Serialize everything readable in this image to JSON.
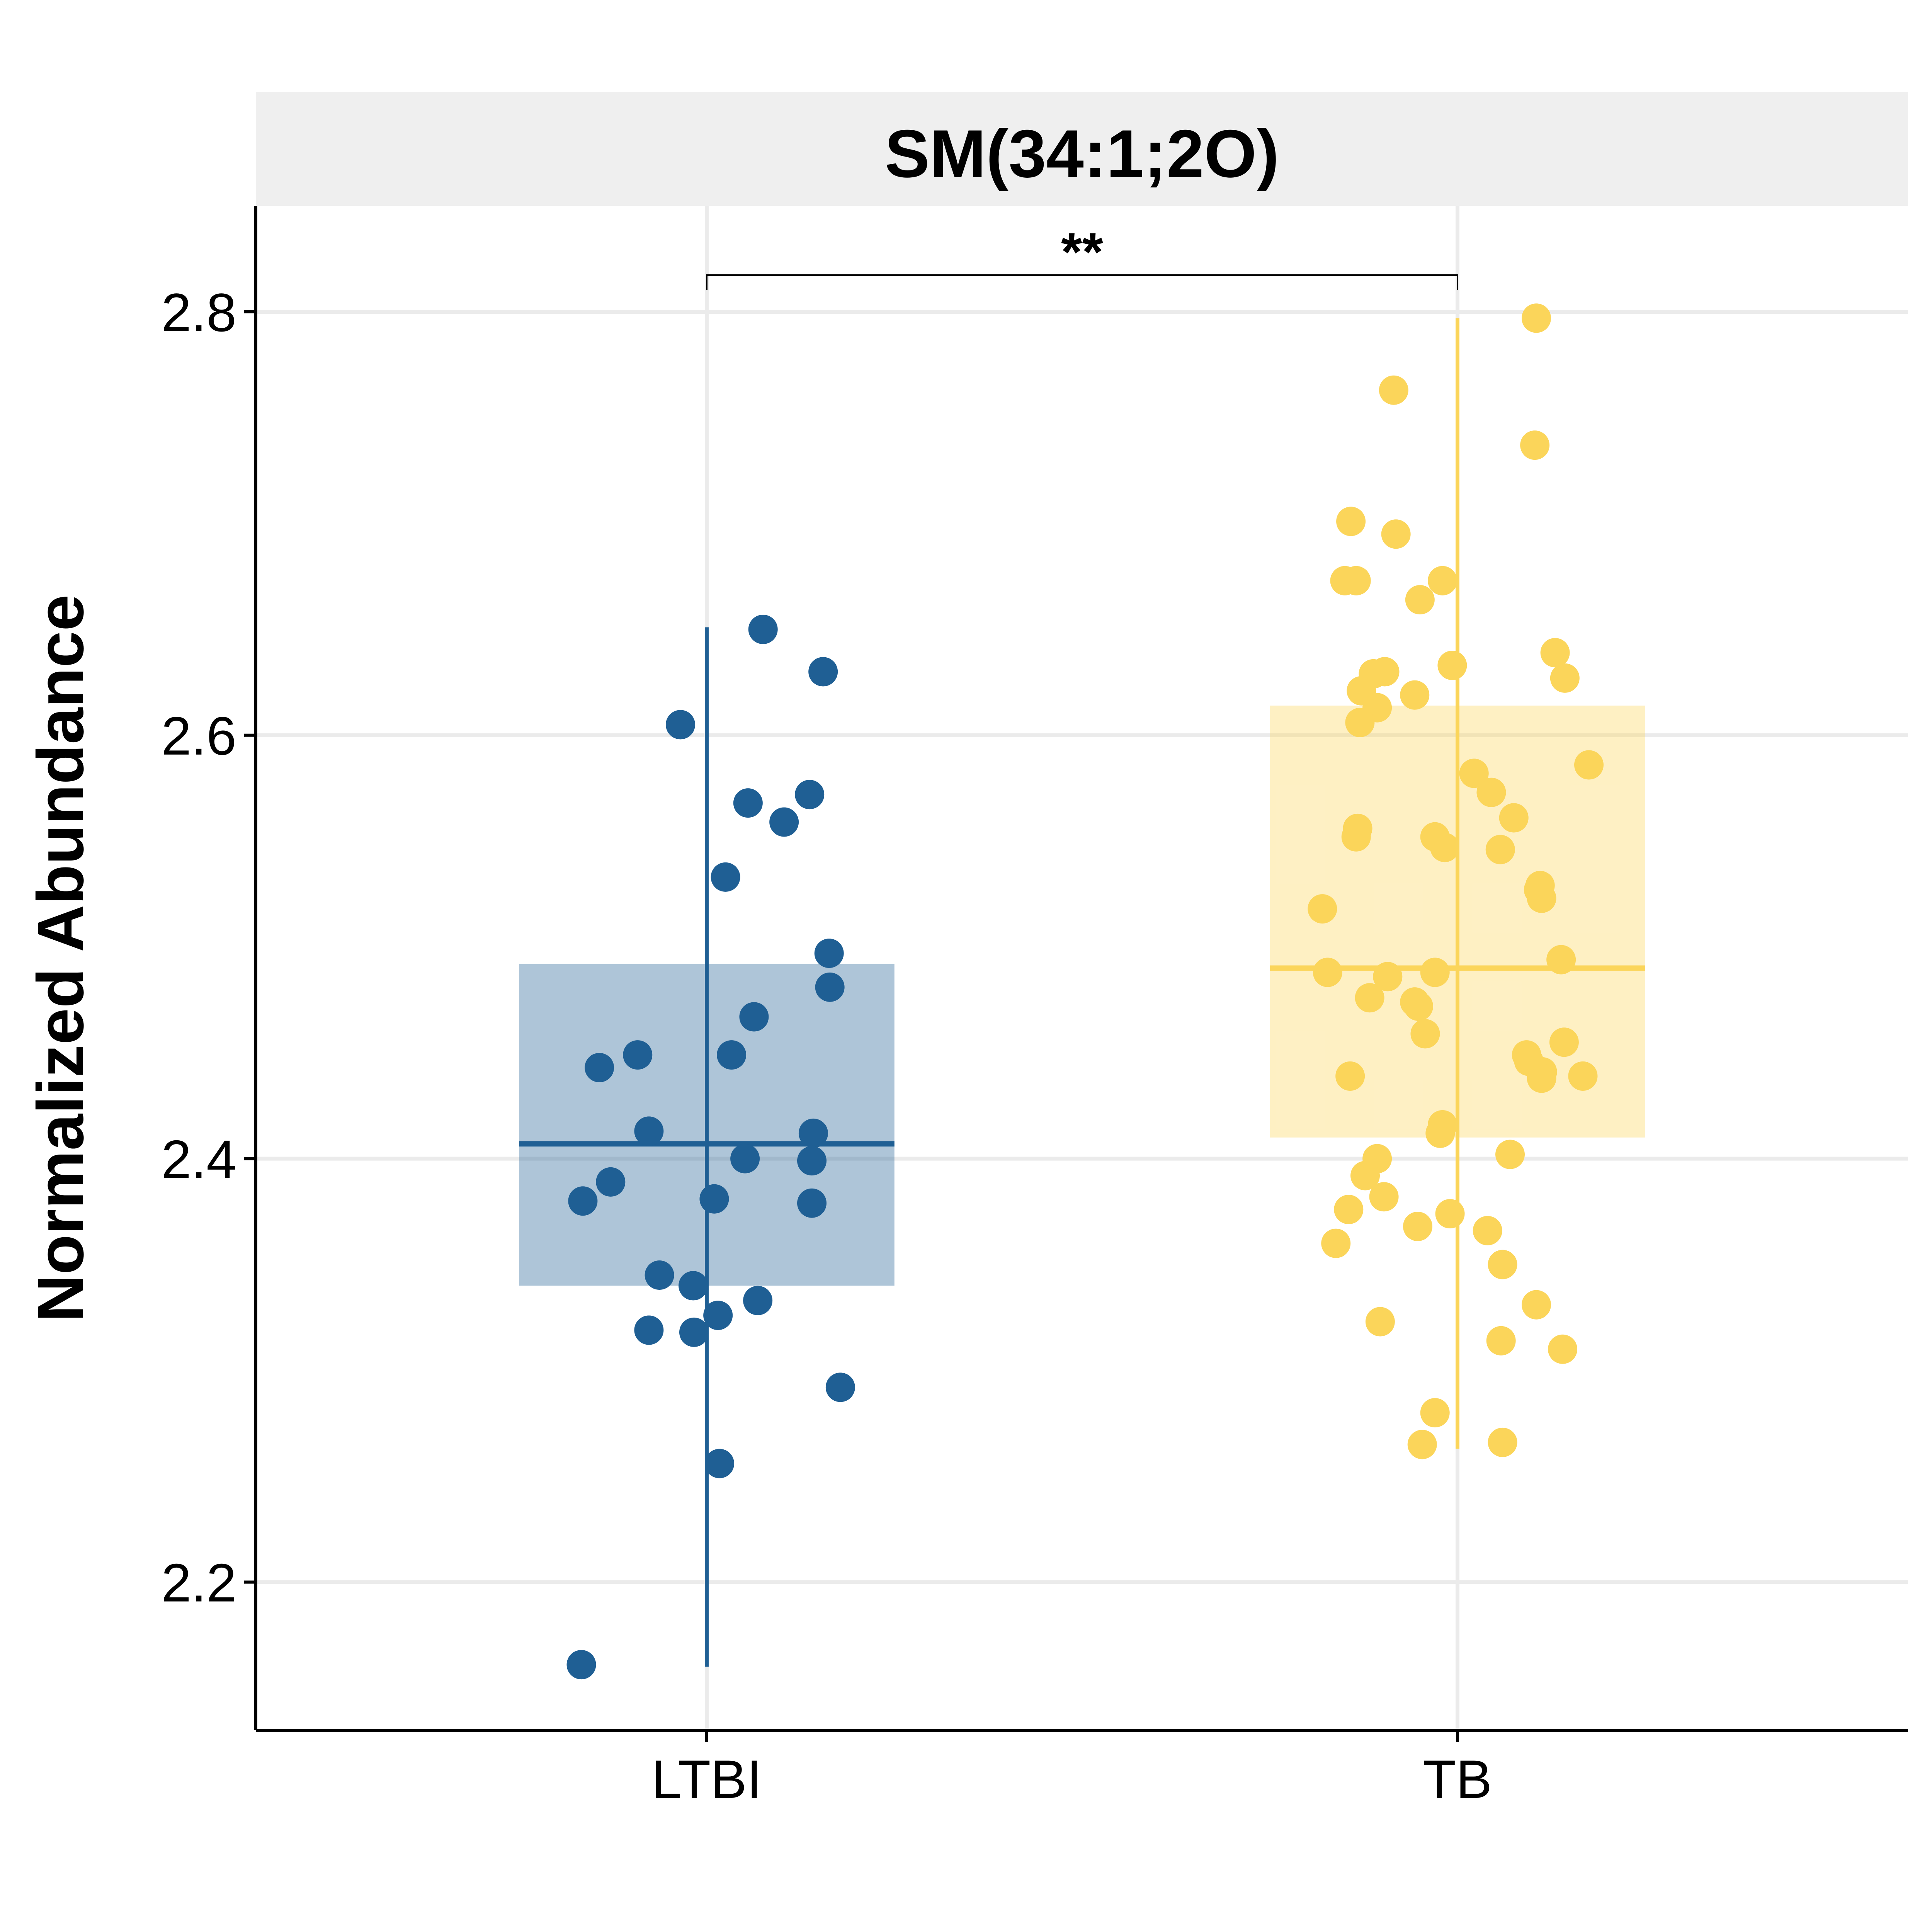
{
  "chart_data": {
    "type": "box",
    "title": "SM(34:1;2O)",
    "xlabel": "",
    "ylabel": "Normalized Abundance",
    "ylim": [
      2.13,
      2.85
    ],
    "yticks": [
      "2.2",
      "2.4",
      "2.6",
      "2.8"
    ],
    "categories": [
      "LTBI",
      "TB"
    ],
    "grid": true,
    "significance": {
      "from": "LTBI",
      "to": "TB",
      "label": "**"
    },
    "colors": {
      "LTBI": "#1f5f94",
      "TB": "#fbd55a"
    },
    "boxes": [
      {
        "name": "LTBI",
        "whisker_low": 2.16,
        "q1": 2.34,
        "median": 2.407,
        "q3": 2.492,
        "whisker_high": 2.651
      },
      {
        "name": "TB",
        "whisker_low": 2.263,
        "q1": 2.41,
        "median": 2.49,
        "q3": 2.614,
        "whisker_high": 2.797
      }
    ],
    "points": {
      "LTBI": [
        [
          -0.167,
          2.161
        ],
        [
          0.075,
          2.65
        ],
        [
          0.155,
          2.63
        ],
        [
          -0.035,
          2.605
        ],
        [
          0.055,
          2.568
        ],
        [
          0.137,
          2.572
        ],
        [
          0.103,
          2.559
        ],
        [
          0.025,
          2.533
        ],
        [
          0.163,
          2.497
        ],
        [
          0.164,
          2.481
        ],
        [
          0.063,
          2.467
        ],
        [
          -0.143,
          2.443
        ],
        [
          -0.092,
          2.449
        ],
        [
          0.033,
          2.449
        ],
        [
          -0.077,
          2.413
        ],
        [
          0.142,
          2.412
        ],
        [
          0.051,
          2.4
        ],
        [
          0.14,
          2.399
        ],
        [
          -0.128,
          2.389
        ],
        [
          -0.165,
          2.38
        ],
        [
          0.01,
          2.381
        ],
        [
          0.14,
          2.379
        ],
        [
          -0.063,
          2.345
        ],
        [
          -0.018,
          2.34
        ],
        [
          0.068,
          2.333
        ],
        [
          0.015,
          2.326
        ],
        [
          -0.077,
          2.319
        ],
        [
          -0.017,
          2.318
        ],
        [
          0.178,
          2.292
        ],
        [
          0.017,
          2.256
        ]
      ],
      "TB": [
        [
          0.105,
          2.797
        ],
        [
          -0.085,
          2.763
        ],
        [
          0.103,
          2.737
        ],
        [
          -0.142,
          2.701
        ],
        [
          -0.082,
          2.695
        ],
        [
          -0.15,
          2.673
        ],
        [
          -0.135,
          2.673
        ],
        [
          -0.02,
          2.673
        ],
        [
          -0.05,
          2.664
        ],
        [
          -0.007,
          2.633
        ],
        [
          0.13,
          2.639
        ],
        [
          0.143,
          2.627
        ],
        [
          -0.112,
          2.629
        ],
        [
          -0.097,
          2.63
        ],
        [
          -0.128,
          2.621
        ],
        [
          -0.057,
          2.619
        ],
        [
          -0.107,
          2.613
        ],
        [
          -0.13,
          2.606
        ],
        [
          0.175,
          2.586
        ],
        [
          0.022,
          2.582
        ],
        [
          0.045,
          2.573
        ],
        [
          0.075,
          2.561
        ],
        [
          -0.133,
          2.556
        ],
        [
          -0.135,
          2.552
        ],
        [
          -0.03,
          2.552
        ],
        [
          -0.017,
          2.547
        ],
        [
          0.057,
          2.546
        ],
        [
          0.108,
          2.527
        ],
        [
          0.11,
          2.529
        ],
        [
          0.112,
          2.523
        ],
        [
          -0.18,
          2.518
        ],
        [
          0.138,
          2.494
        ],
        [
          -0.173,
          2.488
        ],
        [
          -0.093,
          2.486
        ],
        [
          -0.03,
          2.488
        ],
        [
          -0.117,
          2.476
        ],
        [
          -0.057,
          2.474
        ],
        [
          -0.052,
          2.472
        ],
        [
          -0.043,
          2.459
        ],
        [
          0.142,
          2.455
        ],
        [
          0.092,
          2.449
        ],
        [
          0.095,
          2.446
        ],
        [
          0.113,
          2.441
        ],
        [
          0.112,
          2.438
        ],
        [
          -0.143,
          2.439
        ],
        [
          0.167,
          2.439
        ],
        [
          -0.02,
          2.416
        ],
        [
          -0.023,
          2.412
        ],
        [
          0.07,
          2.402
        ],
        [
          -0.107,
          2.4
        ],
        [
          -0.123,
          2.392
        ],
        [
          -0.098,
          2.382
        ],
        [
          -0.145,
          2.376
        ],
        [
          -0.01,
          2.374
        ],
        [
          -0.053,
          2.368
        ],
        [
          0.04,
          2.366
        ],
        [
          -0.162,
          2.36
        ],
        [
          0.06,
          2.35
        ],
        [
          0.105,
          2.331
        ],
        [
          -0.103,
          2.323
        ],
        [
          0.058,
          2.314
        ],
        [
          0.14,
          2.31
        ],
        [
          -0.03,
          2.28
        ],
        [
          -0.047,
          2.265
        ],
        [
          0.06,
          2.266
        ]
      ]
    }
  }
}
